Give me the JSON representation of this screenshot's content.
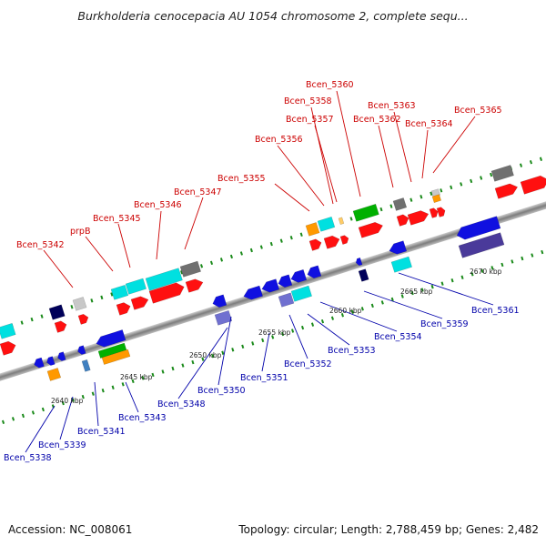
{
  "title": "Burkholderia cenocepacia AU 1054 chromosome 2, complete sequ...",
  "footer": {
    "accession": "Accession: NC_008061",
    "summary": "Topology: circular; Length: 2,788,459 bp; Genes: 2,482"
  },
  "kbp_labels": [
    {
      "text": "2640 kbp"
    },
    {
      "text": "2645 kbp"
    },
    {
      "text": "2650 kbp"
    },
    {
      "text": "2655 kbp"
    },
    {
      "text": "2660 kbp"
    },
    {
      "text": "2665 kbp"
    },
    {
      "text": "2670 kbp"
    }
  ],
  "forward_genes": [
    "Bcen_5342",
    "prpB",
    "Bcen_5345",
    "Bcen_5346",
    "Bcen_5347",
    "Bcen_5355",
    "Bcen_5356",
    "Bcen_5357",
    "Bcen_5358",
    "Bcen_5360",
    "Bcen_5362",
    "Bcen_5363",
    "Bcen_5364",
    "Bcen_5365"
  ],
  "reverse_genes": [
    "Bcen_5338",
    "Bcen_5339",
    "Bcen_5341",
    "Bcen_5343",
    "Bcen_5348",
    "Bcen_5350",
    "Bcen_5351",
    "Bcen_5352",
    "Bcen_5353",
    "Bcen_5354",
    "Bcen_5359",
    "Bcen_5361"
  ],
  "colors": {
    "forward_label": "#cc0000",
    "reverse_label": "#0000aa",
    "backbone": "#8a8a8a",
    "tick": "#1a8a1a"
  }
}
